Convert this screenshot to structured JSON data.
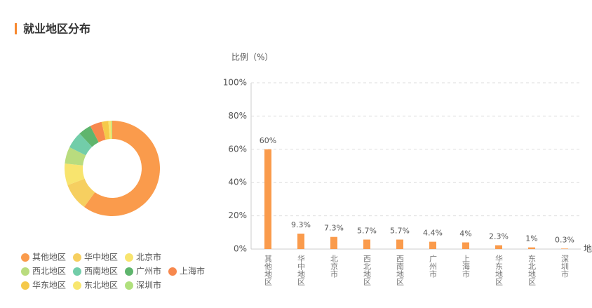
{
  "header": {
    "title": "就业地区分布"
  },
  "chart_data": [
    {
      "type": "pie",
      "categories": [
        "其他地区",
        "华中地区",
        "北京市",
        "西北地区",
        "西南地区",
        "广州市",
        "上海市",
        "华东地区",
        "东北地区",
        "深圳市"
      ],
      "values": [
        60,
        9.3,
        7.3,
        5.7,
        5.7,
        4.4,
        4,
        2.3,
        1,
        0.3
      ],
      "colors": [
        "#fa9b4c",
        "#f6cf60",
        "#f8e46e",
        "#b9dc7e",
        "#72cda9",
        "#5fb56d",
        "#f7884d",
        "#f5c94a",
        "#f8e66e",
        "#b0e07d"
      ]
    },
    {
      "type": "bar",
      "y_label": "比例（%）",
      "x_label": "地",
      "categories": [
        "其他地区",
        "华中地区",
        "北京市",
        "西北地区",
        "西南地区",
        "广州市",
        "上海市",
        "华东地区",
        "东北地区",
        "深圳市"
      ],
      "values": [
        60,
        9.3,
        7.3,
        5.7,
        5.7,
        4.4,
        4,
        2.3,
        1,
        0.3
      ],
      "value_labels": [
        "60%",
        "9.3%",
        "7.3%",
        "5.7%",
        "5.7%",
        "4.4%",
        "4%",
        "2.3%",
        "1%",
        "0.3%"
      ],
      "color": "#fa9b4c",
      "ylim": [
        0,
        100
      ],
      "yticks": [
        {
          "value": 0,
          "label": "0%"
        },
        {
          "value": 20,
          "label": "20%"
        },
        {
          "value": 40,
          "label": "40%"
        },
        {
          "value": 60,
          "label": "60%"
        },
        {
          "value": 80,
          "label": "80%"
        },
        {
          "value": 100,
          "label": "100%"
        }
      ],
      "grid": true
    }
  ]
}
